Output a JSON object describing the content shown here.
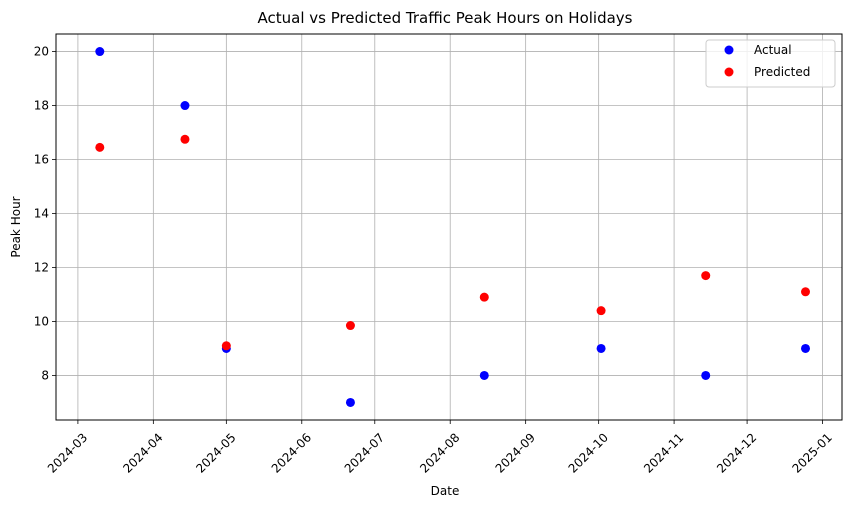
{
  "chart_data": {
    "type": "scatter",
    "title": "Actual vs Predicted Traffic Peak Hours on Holidays",
    "xlabel": "Date",
    "ylabel": "Peak Hour",
    "x_axis_type": "date",
    "xlim": [
      "2024-02-21",
      "2025-01-09"
    ],
    "ylim": [
      6.35,
      20.65
    ],
    "x_ticks": [
      "2024-03-01",
      "2024-04-01",
      "2024-05-01",
      "2024-06-01",
      "2024-07-01",
      "2024-08-01",
      "2024-09-01",
      "2024-10-01",
      "2024-11-01",
      "2024-12-01",
      "2025-01-01"
    ],
    "x_tick_labels": [
      "2024-03",
      "2024-04",
      "2024-05",
      "2024-06",
      "2024-07",
      "2024-08",
      "2024-09",
      "2024-10",
      "2024-11",
      "2024-12",
      "2025-01"
    ],
    "y_ticks": [
      8,
      10,
      12,
      14,
      16,
      18,
      20
    ],
    "y_tick_labels": [
      "8",
      "10",
      "12",
      "14",
      "16",
      "18",
      "20"
    ],
    "grid": true,
    "legend_position": "top-right",
    "series": [
      {
        "name": "Actual",
        "color": "#0000ff",
        "points": [
          {
            "x": "2024-03-10",
            "y": 20
          },
          {
            "x": "2024-04-14",
            "y": 18
          },
          {
            "x": "2024-05-01",
            "y": 9
          },
          {
            "x": "2024-06-21",
            "y": 7
          },
          {
            "x": "2024-08-15",
            "y": 8
          },
          {
            "x": "2024-10-02",
            "y": 9
          },
          {
            "x": "2024-11-14",
            "y": 8
          },
          {
            "x": "2024-12-25",
            "y": 9
          }
        ]
      },
      {
        "name": "Predicted",
        "color": "#ff0000",
        "points": [
          {
            "x": "2024-03-10",
            "y": 16.45
          },
          {
            "x": "2024-04-14",
            "y": 16.75
          },
          {
            "x": "2024-05-01",
            "y": 9.1
          },
          {
            "x": "2024-06-21",
            "y": 9.85
          },
          {
            "x": "2024-08-15",
            "y": 10.9
          },
          {
            "x": "2024-10-02",
            "y": 10.4
          },
          {
            "x": "2024-11-14",
            "y": 11.7
          },
          {
            "x": "2024-12-25",
            "y": 11.1
          }
        ]
      }
    ]
  }
}
